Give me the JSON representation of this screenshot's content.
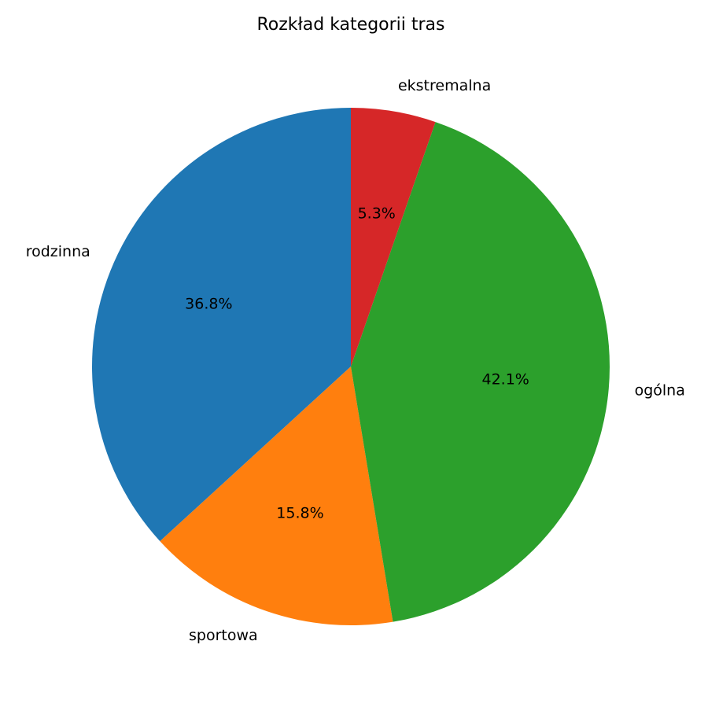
{
  "chart_data": {
    "type": "pie",
    "title": "Rozkład kategorii tras",
    "start_angle_deg": 90,
    "direction": "counterclockwise",
    "slices": [
      {
        "label": "rodzinna",
        "value": 36.8,
        "pct_label": "36.8%",
        "color": "#1f77b4"
      },
      {
        "label": "sportowa",
        "value": 15.8,
        "pct_label": "15.8%",
        "color": "#ff7f0e"
      },
      {
        "label": "ogólna",
        "value": 42.1,
        "pct_label": "42.1%",
        "color": "#2ca02c"
      },
      {
        "label": "ekstremalna",
        "value": 5.3,
        "pct_label": "5.3%",
        "color": "#d62728"
      }
    ]
  }
}
